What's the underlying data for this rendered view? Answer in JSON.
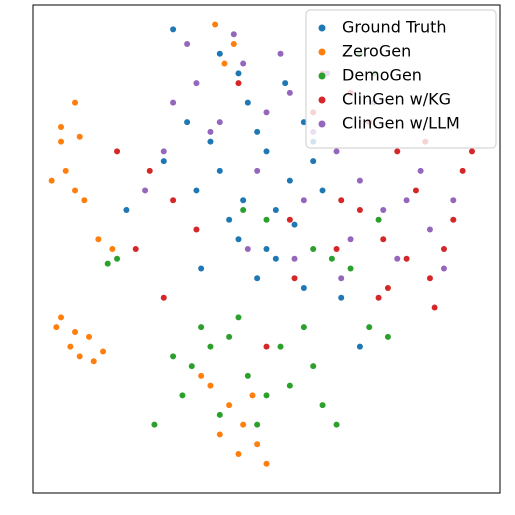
{
  "chart_data": {
    "type": "scatter",
    "xlim": [
      0,
      100
    ],
    "ylim": [
      0,
      100
    ],
    "legend": "upper right",
    "series": [
      {
        "name": "Ground Truth",
        "color": "#1f77b4",
        "x": [
          35,
          40,
          45,
          50,
          55,
          60,
          38,
          42,
          48,
          52,
          58,
          62,
          44,
          50,
          56,
          33,
          46,
          54,
          60,
          40,
          28,
          20,
          66,
          70,
          48,
          52,
          36,
          58,
          44,
          30
        ],
        "values": [
          62,
          66,
          60,
          70,
          64,
          68,
          72,
          56,
          74,
          58,
          76,
          62,
          52,
          50,
          55,
          76,
          80,
          84,
          72,
          90,
          68,
          58,
          40,
          30,
          44,
          48,
          46,
          42,
          86,
          95
        ]
      },
      {
        "name": "ZeroGen",
        "color": "#ff7f0e",
        "x": [
          5,
          8,
          10,
          12,
          15,
          6,
          9,
          13,
          4,
          7,
          9,
          6,
          10,
          11,
          38,
          42,
          45,
          48,
          36,
          44,
          40,
          47,
          50,
          14,
          17,
          39,
          43,
          41,
          9,
          6
        ],
        "values": [
          34,
          30,
          28,
          32,
          29,
          36,
          33,
          27,
          64,
          66,
          62,
          75,
          73,
          60,
          22,
          18,
          14,
          10,
          24,
          8,
          12,
          20,
          6,
          52,
          50,
          96,
          92,
          88,
          80,
          72
        ]
      },
      {
        "name": "DemoGen",
        "color": "#2ca02c",
        "x": [
          30,
          34,
          38,
          42,
          46,
          50,
          55,
          60,
          62,
          65,
          32,
          40,
          48,
          53,
          58,
          44,
          36,
          26,
          72,
          76,
          74,
          60,
          64,
          68,
          16,
          18,
          70,
          73,
          45,
          50
        ],
        "values": [
          28,
          26,
          30,
          32,
          24,
          20,
          22,
          26,
          18,
          14,
          20,
          16,
          14,
          30,
          34,
          36,
          34,
          14,
          34,
          32,
          56,
          50,
          48,
          46,
          47,
          48,
          90,
          86,
          58,
          56
        ]
      },
      {
        "name": "ClinGen w/KG",
        "color": "#d62728",
        "x": [
          25,
          30,
          55,
          65,
          70,
          75,
          80,
          85,
          90,
          92,
          78,
          72,
          60,
          68,
          82,
          88,
          86,
          74,
          35,
          18,
          22,
          50,
          62,
          66,
          94,
          84,
          76,
          28,
          44,
          56
        ],
        "values": [
          66,
          60,
          56,
          50,
          58,
          52,
          48,
          44,
          56,
          66,
          70,
          76,
          78,
          82,
          62,
          50,
          38,
          40,
          54,
          70,
          50,
          30,
          86,
          60,
          70,
          72,
          42,
          40,
          84,
          44
        ]
      },
      {
        "name": "ClinGen w/LLM",
        "color": "#9467bd",
        "x": [
          30,
          35,
          40,
          45,
          50,
          55,
          60,
          65,
          70,
          75,
          80,
          85,
          28,
          38,
          48,
          58,
          68,
          78,
          88,
          33,
          43,
          53,
          63,
          73,
          83,
          46,
          56,
          66,
          24,
          90
        ],
        "values": [
          80,
          84,
          76,
          88,
          78,
          82,
          74,
          70,
          64,
          58,
          60,
          54,
          70,
          74,
          66,
          60,
          52,
          48,
          46,
          92,
          94,
          90,
          86,
          80,
          66,
          50,
          48,
          44,
          62,
          60
        ]
      }
    ]
  }
}
